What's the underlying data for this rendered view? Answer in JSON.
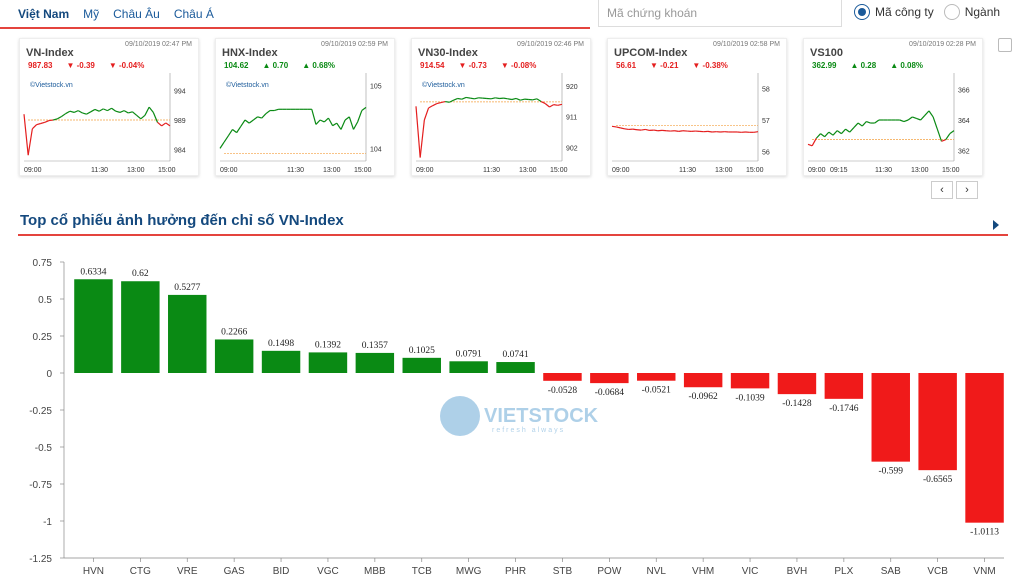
{
  "header": {
    "tabs": [
      "Việt Nam",
      "Mỹ",
      "Châu Âu",
      "Châu Á"
    ],
    "active_tab": 0,
    "search_placeholder": "Mã chứng khoán",
    "radio_options": [
      "Mã công ty",
      "Ngành"
    ],
    "radio_selected": 0
  },
  "cards": [
    {
      "name": "VN-Index",
      "time": "09/10/2019 02:47 PM",
      "price": "987.83",
      "change": "-0.39",
      "pct": "-0.04%",
      "dir": "down",
      "brand": "©Vietstock.vn",
      "y_ticks": [
        "994",
        "989",
        "984"
      ],
      "x_ticks": [
        "09:00",
        "11:30",
        "13:00",
        "15:00"
      ],
      "points": [
        990.0,
        983.0,
        987.5,
        988.2,
        988.4,
        988.6,
        988.9,
        989.0,
        989.2,
        989.6,
        990.1,
        990.5,
        990.3,
        990.6,
        990.2,
        990.0,
        990.4,
        990.8,
        990.5,
        990.9,
        990.6,
        991.0,
        990.5,
        990.3,
        990.6,
        990.2,
        990.4,
        989.8,
        989.2,
        989.8,
        991.2,
        990.3,
        988.6,
        988.0,
        988.5,
        988.0
      ],
      "ref": 989.0,
      "ymin": 982.0,
      "ymax": 996.0
    },
    {
      "name": "HNX-Index",
      "time": "09/10/2019 02:59 PM",
      "price": "104.62",
      "change": "0.70",
      "pct": "0.68%",
      "dir": "up",
      "brand": "©Vietstock.vn",
      "y_ticks": [
        "105",
        "104"
      ],
      "x_ticks": [
        "09:00",
        "11:30",
        "13:00",
        "15:00"
      ],
      "points": [
        104.0,
        104.1,
        104.2,
        104.3,
        104.25,
        104.35,
        104.45,
        104.4,
        104.45,
        104.5,
        104.48,
        104.55,
        104.6,
        104.6,
        104.62,
        104.62,
        104.62,
        104.62,
        104.62,
        104.62,
        104.62,
        104.62,
        104.62,
        104.38,
        104.45,
        104.42,
        104.48,
        104.36,
        104.4,
        104.3,
        104.45,
        104.5,
        104.3,
        104.42,
        104.6,
        104.65
      ],
      "ref": 103.92,
      "ymin": 103.8,
      "ymax": 105.1
    },
    {
      "name": "VN30-Index",
      "time": "09/10/2019 02:46 PM",
      "price": "914.54",
      "change": "-0.73",
      "pct": "-0.08%",
      "dir": "down",
      "brand": "©Vietstock.vn",
      "y_ticks": [
        "920",
        "911",
        "902"
      ],
      "x_ticks": [
        "09:00",
        "11:30",
        "13:00",
        "15:00"
      ],
      "points": [
        914.0,
        899.0,
        910.0,
        913.5,
        914.2,
        914.8,
        915.1,
        915.4,
        915.2,
        915.8,
        916.3,
        916.1,
        916.6,
        916.4,
        916.2,
        916.5,
        916.4,
        916.3,
        916.2,
        916.5,
        916.3,
        916.4,
        916.2,
        916.0,
        916.3,
        915.8,
        916.1,
        916.0,
        915.9,
        916.2,
        915.4,
        914.8,
        913.8,
        914.5,
        914.3,
        914.6
      ],
      "ref": 915.3,
      "ymin": 898.0,
      "ymax": 922.0
    },
    {
      "name": "UPCOM-Index",
      "time": "09/10/2019 02:58 PM",
      "price": "56.61",
      "change": "-0.21",
      "pct": "-0.38%",
      "dir": "down",
      "brand": "",
      "y_ticks": [
        "58",
        "57",
        "56"
      ],
      "x_ticks": [
        "09:00",
        "11:30",
        "13:00",
        "15:00"
      ],
      "points": [
        56.8,
        56.78,
        56.75,
        56.72,
        56.7,
        56.71,
        56.69,
        56.68,
        56.7,
        56.67,
        56.68,
        56.66,
        56.67,
        56.66,
        56.65,
        56.66,
        56.64,
        56.66,
        56.65,
        56.64,
        56.65,
        56.64,
        56.63,
        56.64,
        56.62,
        56.63,
        56.62,
        56.63,
        56.62,
        56.62,
        56.62,
        56.61,
        56.62,
        56.61,
        56.61,
        56.63
      ],
      "ref": 56.82,
      "ymin": 55.7,
      "ymax": 58.3
    },
    {
      "name": "VS100",
      "time": "09/10/2019 02:28 PM",
      "price": "362.99",
      "change": "0.28",
      "pct": "0.08%",
      "dir": "up",
      "brand": "",
      "y_ticks": [
        "366",
        "364",
        "362"
      ],
      "x_ticks": [
        "09:00",
        "09:15",
        "11:30",
        "13:00",
        "15:00"
      ],
      "points": [
        362.4,
        362.3,
        362.8,
        363.1,
        362.9,
        363.2,
        363.0,
        363.3,
        363.1,
        363.4,
        363.2,
        363.5,
        363.8,
        363.6,
        363.9,
        363.8,
        363.8,
        364.0,
        364.0,
        364.0,
        364.0,
        364.0,
        364.0,
        363.9,
        364.0,
        364.2,
        364.1,
        364.0,
        364.3,
        364.6,
        364.2,
        363.4,
        362.6,
        362.7,
        363.1,
        363.3
      ],
      "ref": 362.71,
      "ymin": 361.3,
      "ymax": 366.7
    }
  ],
  "nav": {
    "prev": "‹",
    "next": "›"
  },
  "section": {
    "title": "Top cổ phiếu ảnh hưởng đến chỉ số VN-Index"
  },
  "chart_data": {
    "type": "bar",
    "title": "",
    "categories": [
      "HVN",
      "CTG",
      "VRE",
      "GAS",
      "BID",
      "VGC",
      "MBB",
      "TCB",
      "MWG",
      "PHR",
      "STB",
      "POW",
      "NVL",
      "VHM",
      "VIC",
      "BVH",
      "PLX",
      "SAB",
      "VCB",
      "VNM"
    ],
    "values": [
      0.6334,
      0.62,
      0.5277,
      0.2266,
      0.1498,
      0.1392,
      0.1357,
      0.1025,
      0.0791,
      0.0741,
      -0.0528,
      -0.0684,
      -0.0521,
      -0.0962,
      -0.1039,
      -0.1428,
      -0.1746,
      -0.599,
      -0.6565,
      -1.0113
    ],
    "value_labels": [
      "0.6334",
      "0.62",
      "0.5277",
      "0.2266",
      "0.1498",
      "0.1392",
      "0.1357",
      "0.1025",
      "0.0791",
      "0.0741",
      "-0.0528",
      "-0.0684",
      "-0.0521",
      "-0.0962",
      "-0.1039",
      "-0.1428",
      "-0.1746",
      "-0.599",
      "-0.6565",
      "-1.0113"
    ],
    "ylim": [
      -1.25,
      0.75
    ],
    "y_ticks": [
      0.75,
      0.5,
      0.25,
      0,
      -0.25,
      -0.5,
      -0.75,
      -1,
      -1.25
    ],
    "y_tick_labels": [
      "0.75",
      "0.5",
      "0.25",
      "0",
      "-0.25",
      "-0.5",
      "-0.75",
      "-1",
      "-1.25"
    ],
    "colors": {
      "positive": "#0a8a14",
      "negative": "#f01a1a"
    },
    "xlabel": "",
    "ylabel": "",
    "grid": false,
    "watermark": {
      "brand": "VIETSTOCK",
      "tagline": "refresh always"
    }
  }
}
